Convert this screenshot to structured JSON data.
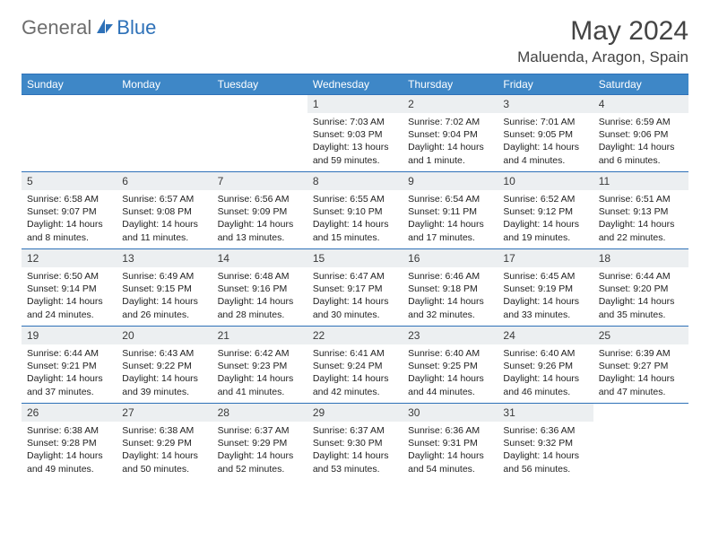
{
  "brand": {
    "word1": "General",
    "word2": "Blue",
    "word1_color": "#6d6d6d",
    "word2_color": "#2e71b8"
  },
  "header": {
    "title": "May 2024",
    "location": "Maluenda, Aragon, Spain"
  },
  "colors": {
    "header_bg": "#3e87c7",
    "border": "#2e71b8",
    "daynum_bg": "#eceff1",
    "text": "#222222",
    "page_bg": "#ffffff"
  },
  "day_names": [
    "Sunday",
    "Monday",
    "Tuesday",
    "Wednesday",
    "Thursday",
    "Friday",
    "Saturday"
  ],
  "calendar": {
    "type": "table",
    "columns": 7,
    "leading_blanks": 3,
    "days": [
      {
        "n": "1",
        "sr": "7:03 AM",
        "ss": "9:03 PM",
        "dl": "13 hours and 59 minutes."
      },
      {
        "n": "2",
        "sr": "7:02 AM",
        "ss": "9:04 PM",
        "dl": "14 hours and 1 minute."
      },
      {
        "n": "3",
        "sr": "7:01 AM",
        "ss": "9:05 PM",
        "dl": "14 hours and 4 minutes."
      },
      {
        "n": "4",
        "sr": "6:59 AM",
        "ss": "9:06 PM",
        "dl": "14 hours and 6 minutes."
      },
      {
        "n": "5",
        "sr": "6:58 AM",
        "ss": "9:07 PM",
        "dl": "14 hours and 8 minutes."
      },
      {
        "n": "6",
        "sr": "6:57 AM",
        "ss": "9:08 PM",
        "dl": "14 hours and 11 minutes."
      },
      {
        "n": "7",
        "sr": "6:56 AM",
        "ss": "9:09 PM",
        "dl": "14 hours and 13 minutes."
      },
      {
        "n": "8",
        "sr": "6:55 AM",
        "ss": "9:10 PM",
        "dl": "14 hours and 15 minutes."
      },
      {
        "n": "9",
        "sr": "6:54 AM",
        "ss": "9:11 PM",
        "dl": "14 hours and 17 minutes."
      },
      {
        "n": "10",
        "sr": "6:52 AM",
        "ss": "9:12 PM",
        "dl": "14 hours and 19 minutes."
      },
      {
        "n": "11",
        "sr": "6:51 AM",
        "ss": "9:13 PM",
        "dl": "14 hours and 22 minutes."
      },
      {
        "n": "12",
        "sr": "6:50 AM",
        "ss": "9:14 PM",
        "dl": "14 hours and 24 minutes."
      },
      {
        "n": "13",
        "sr": "6:49 AM",
        "ss": "9:15 PM",
        "dl": "14 hours and 26 minutes."
      },
      {
        "n": "14",
        "sr": "6:48 AM",
        "ss": "9:16 PM",
        "dl": "14 hours and 28 minutes."
      },
      {
        "n": "15",
        "sr": "6:47 AM",
        "ss": "9:17 PM",
        "dl": "14 hours and 30 minutes."
      },
      {
        "n": "16",
        "sr": "6:46 AM",
        "ss": "9:18 PM",
        "dl": "14 hours and 32 minutes."
      },
      {
        "n": "17",
        "sr": "6:45 AM",
        "ss": "9:19 PM",
        "dl": "14 hours and 33 minutes."
      },
      {
        "n": "18",
        "sr": "6:44 AM",
        "ss": "9:20 PM",
        "dl": "14 hours and 35 minutes."
      },
      {
        "n": "19",
        "sr": "6:44 AM",
        "ss": "9:21 PM",
        "dl": "14 hours and 37 minutes."
      },
      {
        "n": "20",
        "sr": "6:43 AM",
        "ss": "9:22 PM",
        "dl": "14 hours and 39 minutes."
      },
      {
        "n": "21",
        "sr": "6:42 AM",
        "ss": "9:23 PM",
        "dl": "14 hours and 41 minutes."
      },
      {
        "n": "22",
        "sr": "6:41 AM",
        "ss": "9:24 PM",
        "dl": "14 hours and 42 minutes."
      },
      {
        "n": "23",
        "sr": "6:40 AM",
        "ss": "9:25 PM",
        "dl": "14 hours and 44 minutes."
      },
      {
        "n": "24",
        "sr": "6:40 AM",
        "ss": "9:26 PM",
        "dl": "14 hours and 46 minutes."
      },
      {
        "n": "25",
        "sr": "6:39 AM",
        "ss": "9:27 PM",
        "dl": "14 hours and 47 minutes."
      },
      {
        "n": "26",
        "sr": "6:38 AM",
        "ss": "9:28 PM",
        "dl": "14 hours and 49 minutes."
      },
      {
        "n": "27",
        "sr": "6:38 AM",
        "ss": "9:29 PM",
        "dl": "14 hours and 50 minutes."
      },
      {
        "n": "28",
        "sr": "6:37 AM",
        "ss": "9:29 PM",
        "dl": "14 hours and 52 minutes."
      },
      {
        "n": "29",
        "sr": "6:37 AM",
        "ss": "9:30 PM",
        "dl": "14 hours and 53 minutes."
      },
      {
        "n": "30",
        "sr": "6:36 AM",
        "ss": "9:31 PM",
        "dl": "14 hours and 54 minutes."
      },
      {
        "n": "31",
        "sr": "6:36 AM",
        "ss": "9:32 PM",
        "dl": "14 hours and 56 minutes."
      }
    ]
  },
  "labels": {
    "sunrise": "Sunrise:",
    "sunset": "Sunset:",
    "daylight": "Daylight:"
  }
}
